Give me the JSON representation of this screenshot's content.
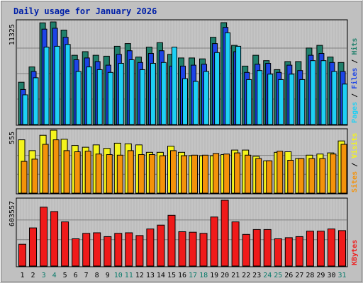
{
  "colors": {
    "hits": "#20806c",
    "files": "#1c44e6",
    "pages": "#1ed0f4",
    "visits": "#f4f41c",
    "sites": "#f4920a",
    "kbytes": "#f01a1a",
    "panel_bg": "#c0c0c0",
    "grid": "#808080",
    "title": "#0020a8",
    "weekend_label": "#0a7b6b"
  },
  "chart_data": {
    "type": "bar",
    "title": "Daily usage for January 2026",
    "categories": [
      "1",
      "2",
      "3",
      "4",
      "5",
      "6",
      "7",
      "8",
      "9",
      "10",
      "11",
      "12",
      "13",
      "14",
      "15",
      "16",
      "17",
      "18",
      "19",
      "20",
      "21",
      "22",
      "23",
      "24",
      "25",
      "26",
      "27",
      "28",
      "29",
      "30",
      "31"
    ],
    "weekend_days": [
      "3",
      "4",
      "10",
      "11",
      "17",
      "18",
      "24",
      "25",
      "31"
    ],
    "panels": [
      {
        "id": "traffic",
        "ymax_label": "11325",
        "ymax": 11325,
        "legend": [
          "Pages",
          "Files",
          "Hits"
        ],
        "series": [
          {
            "name": "Hits",
            "values": [
              4700,
              6400,
              11300,
              11400,
              10500,
              7700,
              8100,
              7700,
              7600,
              8700,
              9000,
              7500,
              8600,
              9100,
              7800,
              7400,
              7400,
              7300,
              9700,
              11325,
              8800,
              6500,
              7700,
              7100,
              6100,
              7000,
              7000,
              8500,
              8800,
              7500,
              6900
            ]
          },
          {
            "name": "Files",
            "values": [
              3900,
              5900,
              10600,
              10700,
              9700,
              7200,
              7400,
              7000,
              6600,
              7800,
              8200,
              6900,
              7900,
              8200,
              6500,
              6500,
              6600,
              6700,
              9000,
              10800,
              8100,
              5800,
              6700,
              6800,
              5800,
              6600,
              6000,
              7700,
              7900,
              6900,
              5900
            ]
          },
          {
            "name": "Pages",
            "values": [
              3300,
              5200,
              8600,
              8700,
              8900,
              5900,
              6400,
              6100,
              5800,
              6800,
              7200,
              6100,
              6800,
              6900,
              8600,
              5100,
              4800,
              5900,
              8000,
              10200,
              8700,
              5000,
              6000,
              5600,
              5000,
              5600,
              5000,
              7100,
              7100,
              5900,
              4500
            ]
          }
        ]
      },
      {
        "id": "visitors",
        "ymax_label": "555",
        "ymax": 555,
        "legend": [
          "Sites",
          "Visits"
        ],
        "series": [
          {
            "name": "Visits",
            "values": [
              470,
              375,
              510,
              555,
              475,
              420,
              405,
              425,
              395,
              440,
              435,
              425,
              360,
              360,
              415,
              360,
              330,
              330,
              330,
              340,
              380,
              380,
              325,
              285,
              360,
              365,
              305,
              335,
              345,
              355,
              460
            ]
          },
          {
            "name": "Sites",
            "values": [
              280,
              300,
              430,
              470,
              375,
              365,
              370,
              345,
              340,
              335,
              375,
              340,
              340,
              330,
              375,
              330,
              335,
              335,
              350,
              345,
              355,
              335,
              305,
              285,
              370,
              290,
              305,
              305,
              305,
              345,
              430
            ]
          }
        ]
      },
      {
        "id": "volume",
        "ymax_label": "603557",
        "ymax": 603557,
        "legend": [
          "KBytes"
        ],
        "series": [
          {
            "name": "KBytes",
            "values": [
              200000,
              350000,
              540000,
              500000,
              405000,
              250000,
              300000,
              305000,
              270000,
              300000,
              305000,
              280000,
              340000,
              375000,
              465000,
              315000,
              310000,
              300000,
              450000,
              603557,
              405000,
              290000,
              335000,
              335000,
              250000,
              260000,
              270000,
              320000,
              320000,
              340000,
              325000
            ]
          }
        ]
      }
    ]
  }
}
